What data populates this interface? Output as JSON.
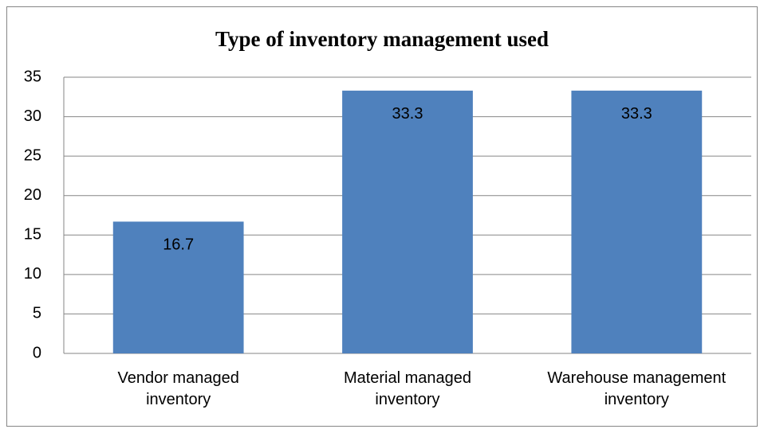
{
  "chart_data": {
    "type": "bar",
    "title": "Type of inventory management used",
    "categories": [
      "Vendor managed\ninventory",
      "Material managed\ninventory",
      "Warehouse management\ninventory"
    ],
    "values": [
      16.7,
      33.3,
      33.3
    ],
    "color": "#4f81bd",
    "ylim": [
      0,
      35
    ],
    "yticks": [
      0,
      5,
      10,
      15,
      20,
      25,
      30,
      35
    ],
    "grid": true
  }
}
